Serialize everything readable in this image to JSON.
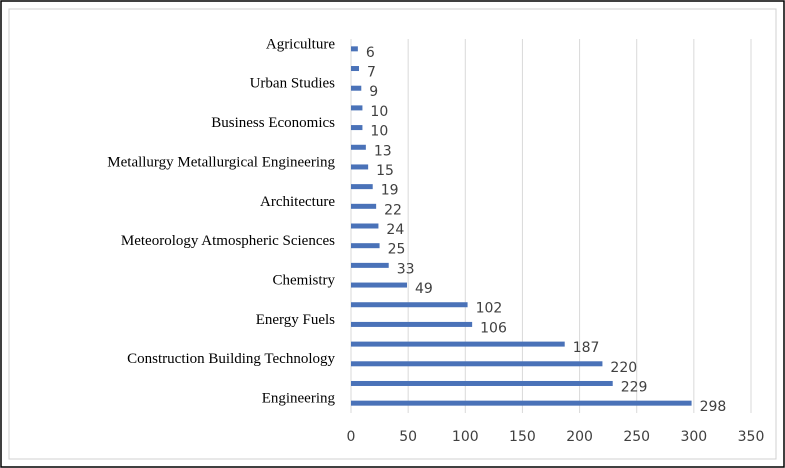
{
  "chart_data": {
    "type": "barh",
    "categories": [
      "Agriculture",
      null,
      "Urban Studies",
      null,
      "Business Economics",
      null,
      "Metallurgy Metallurgical Engineering",
      null,
      "Architecture",
      null,
      "Meteorology Atmospheric Sciences",
      null,
      "Chemistry",
      null,
      "Energy Fuels",
      null,
      "Construction Building Technology",
      null,
      "Engineering"
    ],
    "values": [
      6,
      7,
      9,
      10,
      10,
      13,
      15,
      19,
      22,
      24,
      25,
      33,
      49,
      102,
      106,
      187,
      220,
      229,
      298
    ],
    "color": "#4a72b8",
    "xlim": [
      0,
      350
    ],
    "xticks": [
      0,
      50,
      100,
      150,
      200,
      250,
      300,
      350
    ],
    "grid": true
  }
}
